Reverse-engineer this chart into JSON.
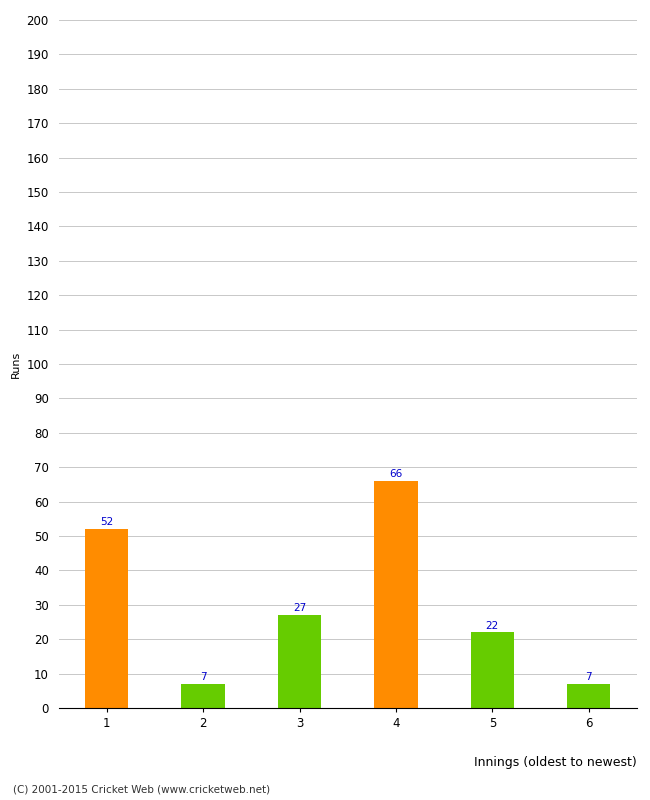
{
  "categories": [
    "1",
    "2",
    "3",
    "4",
    "5",
    "6"
  ],
  "values": [
    52,
    7,
    27,
    66,
    22,
    7
  ],
  "bar_colors": [
    "#ff8c00",
    "#66cc00",
    "#66cc00",
    "#ff8c00",
    "#66cc00",
    "#66cc00"
  ],
  "ylabel": "Runs",
  "xlabel": "Innings (oldest to newest)",
  "ylim": [
    0,
    200
  ],
  "yticks": [
    0,
    10,
    20,
    30,
    40,
    50,
    60,
    70,
    80,
    90,
    100,
    110,
    120,
    130,
    140,
    150,
    160,
    170,
    180,
    190,
    200
  ],
  "label_color": "#0000cc",
  "label_fontsize": 7.5,
  "tick_fontsize": 8.5,
  "xlabel_fontsize": 9,
  "ylabel_fontsize": 8,
  "footer": "(C) 2001-2015 Cricket Web (www.cricketweb.net)",
  "background_color": "#ffffff",
  "grid_color": "#c8c8c8",
  "bar_width": 0.45
}
